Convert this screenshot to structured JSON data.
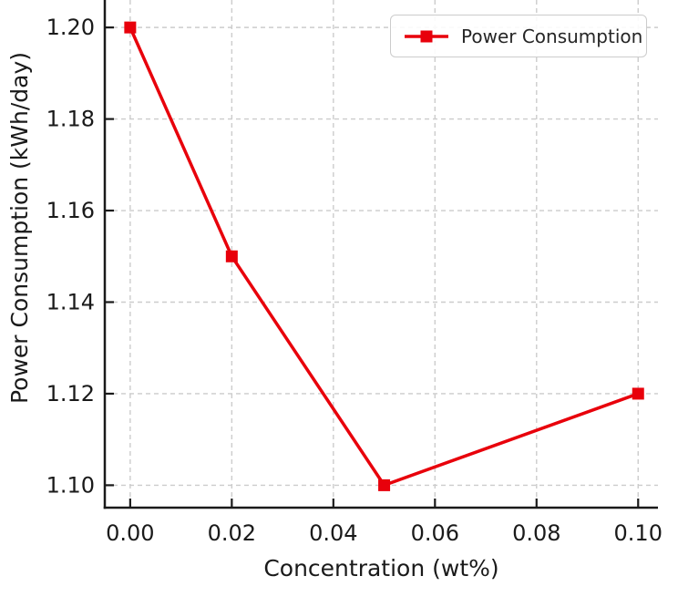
{
  "figure": {
    "background": "#ffffff",
    "text_color": "#1a1a1a",
    "spine_color": "#1a1a1a",
    "grid_color": "#cccccc"
  },
  "chart_data": {
    "type": "line",
    "title": "",
    "xlabel": "Concentration (wt%)",
    "ylabel": "Power Consumption (kWh/day)",
    "x": [
      0.0,
      0.02,
      0.05,
      0.1
    ],
    "series": [
      {
        "name": "Power Consumption",
        "values": [
          1.2,
          1.15,
          1.1,
          1.12
        ],
        "color": "#e8000b",
        "marker": "square",
        "marker_size": 13,
        "line_width": 3.5
      }
    ],
    "xticks": {
      "values": [
        0.0,
        0.02,
        0.04,
        0.06,
        0.08,
        0.1
      ],
      "labels": [
        "0.00",
        "0.02",
        "0.04",
        "0.06",
        "0.08",
        "0.10"
      ]
    },
    "yticks": {
      "values": [
        1.1,
        1.12,
        1.14,
        1.16,
        1.18,
        1.2
      ],
      "labels": [
        "1.10",
        "1.12",
        "1.14",
        "1.16",
        "1.18",
        "1.20"
      ]
    },
    "xlim": [
      -0.005,
      0.1039
    ],
    "ylim": [
      1.0951,
      1.206
    ],
    "grid": "dashed",
    "legend": {
      "label": "Power Consumption",
      "position": "upper-right"
    }
  }
}
